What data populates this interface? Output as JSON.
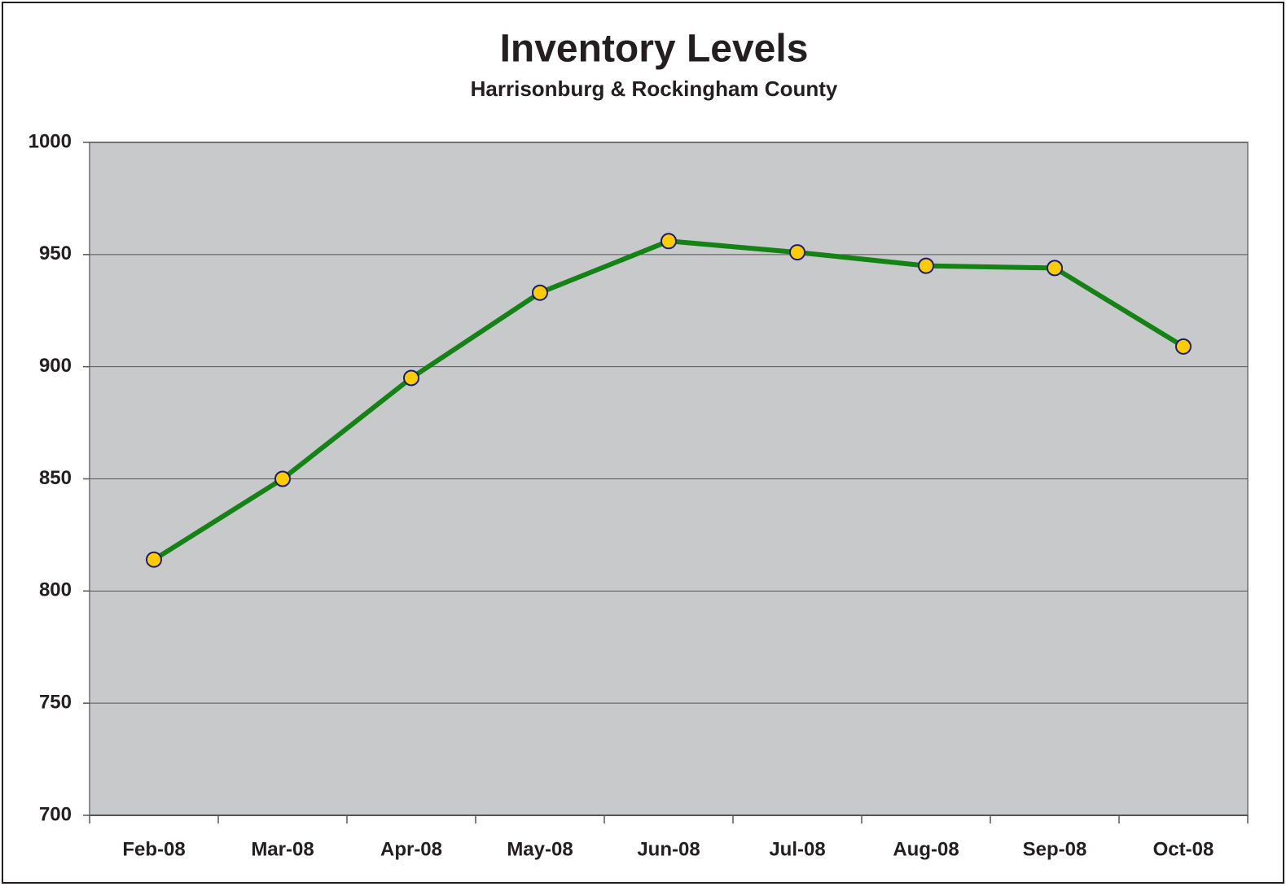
{
  "chart_data": {
    "type": "line",
    "title": "Inventory Levels",
    "subtitle": "Harrisonburg & Rockingham County",
    "categories": [
      "Feb-08",
      "Mar-08",
      "Apr-08",
      "May-08",
      "Jun-08",
      "Jul-08",
      "Aug-08",
      "Sep-08",
      "Oct-08"
    ],
    "series": [
      {
        "name": "Inventory",
        "color": "#148214",
        "marker_color": "#ffcc00",
        "values": [
          814,
          850,
          895,
          933,
          956,
          951,
          945,
          944,
          909
        ]
      }
    ],
    "ylim": [
      700,
      1000
    ],
    "yticks": [
      700,
      750,
      800,
      850,
      900,
      950,
      1000
    ],
    "grid": true
  }
}
